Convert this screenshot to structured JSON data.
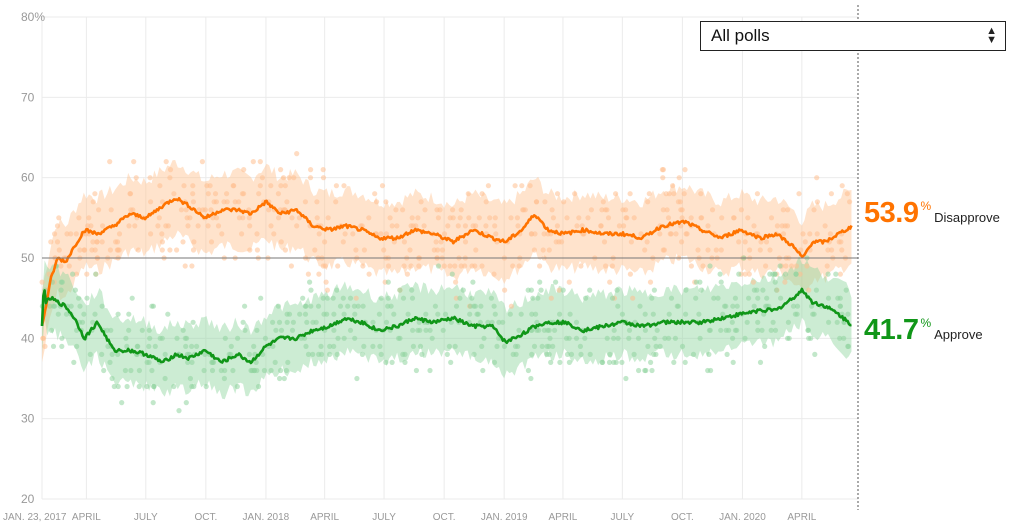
{
  "controls": {
    "poll_filter": {
      "selected": "All polls"
    }
  },
  "colors": {
    "approve": "#109618",
    "approve_light": "#8fd49e",
    "disapprove": "#ff7300",
    "disapprove_light": "#ffc08f"
  },
  "chart_data": {
    "type": "line",
    "y_ticks": [
      "80%",
      "70",
      "60",
      "50",
      "40",
      "30",
      "20"
    ],
    "ylim": [
      20,
      80
    ],
    "reference_line": 50,
    "x_ticks": [
      "JAN. 23, 2017",
      "APRIL",
      "JULY",
      "OCT.",
      "JAN. 2018",
      "APRIL",
      "JULY",
      "OCT.",
      "JAN. 2019",
      "APRIL",
      "JULY",
      "OCT.",
      "JAN. 2020",
      "APRIL"
    ],
    "x_tick_days": [
      0,
      68,
      159,
      251,
      343,
      433,
      524,
      616,
      708,
      798,
      889,
      981,
      1073,
      1164
    ],
    "x_range_days": [
      0,
      1250
    ],
    "grid": true,
    "series": [
      {
        "name": "Disapprove",
        "current": "53.9",
        "label": "Disapprove",
        "band_width": 4.5,
        "points": [
          [
            0,
            41.5
          ],
          [
            6,
            44
          ],
          [
            14,
            47.5
          ],
          [
            24,
            50
          ],
          [
            36,
            49.5
          ],
          [
            50,
            51.5
          ],
          [
            65,
            53.5
          ],
          [
            85,
            53
          ],
          [
            110,
            54
          ],
          [
            135,
            55.5
          ],
          [
            160,
            55
          ],
          [
            185,
            56.5
          ],
          [
            205,
            57.5
          ],
          [
            225,
            56.5
          ],
          [
            250,
            55
          ],
          [
            275,
            56
          ],
          [
            300,
            56
          ],
          [
            320,
            55.5
          ],
          [
            343,
            57
          ],
          [
            365,
            55.5
          ],
          [
            390,
            56
          ],
          [
            415,
            54
          ],
          [
            440,
            53.5
          ],
          [
            465,
            54
          ],
          [
            490,
            53.5
          ],
          [
            515,
            52.5
          ],
          [
            545,
            52.5
          ],
          [
            570,
            53.5
          ],
          [
            600,
            53
          ],
          [
            630,
            52
          ],
          [
            660,
            53.5
          ],
          [
            690,
            52.5
          ],
          [
            710,
            52
          ],
          [
            735,
            53.5
          ],
          [
            755,
            55.5
          ],
          [
            775,
            53.5
          ],
          [
            800,
            53
          ],
          [
            830,
            53.5
          ],
          [
            860,
            53
          ],
          [
            890,
            53
          ],
          [
            920,
            52.5
          ],
          [
            950,
            54
          ],
          [
            985,
            54.5
          ],
          [
            1010,
            53.5
          ],
          [
            1040,
            52.5
          ],
          [
            1070,
            53.5
          ],
          [
            1100,
            52.5
          ],
          [
            1125,
            53
          ],
          [
            1150,
            51.5
          ],
          [
            1165,
            50
          ],
          [
            1180,
            52
          ],
          [
            1200,
            52
          ],
          [
            1220,
            53
          ],
          [
            1240,
            53.9
          ]
        ]
      },
      {
        "name": "Approve",
        "current": "41.7",
        "label": "Approve",
        "band_width": 4.0,
        "points": [
          [
            0,
            41.5
          ],
          [
            3,
            47
          ],
          [
            6,
            44.5
          ],
          [
            14,
            45
          ],
          [
            24,
            44.5
          ],
          [
            36,
            44
          ],
          [
            50,
            42.5
          ],
          [
            65,
            40
          ],
          [
            85,
            42
          ],
          [
            110,
            38.5
          ],
          [
            135,
            38.5
          ],
          [
            160,
            38
          ],
          [
            185,
            37
          ],
          [
            205,
            38
          ],
          [
            225,
            37.5
          ],
          [
            250,
            38.5
          ],
          [
            275,
            37
          ],
          [
            300,
            38
          ],
          [
            320,
            37
          ],
          [
            343,
            39
          ],
          [
            365,
            40
          ],
          [
            390,
            40
          ],
          [
            415,
            41
          ],
          [
            440,
            41.5
          ],
          [
            465,
            42.5
          ],
          [
            490,
            42
          ],
          [
            515,
            41
          ],
          [
            545,
            41.5
          ],
          [
            570,
            42.5
          ],
          [
            600,
            42
          ],
          [
            630,
            42.5
          ],
          [
            660,
            41.5
          ],
          [
            690,
            41.5
          ],
          [
            710,
            39.5
          ],
          [
            735,
            40.5
          ],
          [
            755,
            41.5
          ],
          [
            775,
            42
          ],
          [
            800,
            42
          ],
          [
            830,
            41
          ],
          [
            860,
            41.5
          ],
          [
            890,
            42
          ],
          [
            920,
            41.5
          ],
          [
            950,
            42
          ],
          [
            985,
            42
          ],
          [
            1010,
            42
          ],
          [
            1040,
            42.5
          ],
          [
            1070,
            43
          ],
          [
            1100,
            43.5
          ],
          [
            1125,
            43.5
          ],
          [
            1150,
            45
          ],
          [
            1165,
            46
          ],
          [
            1180,
            44.5
          ],
          [
            1200,
            44
          ],
          [
            1220,
            43
          ],
          [
            1240,
            41.7
          ]
        ]
      }
    ]
  }
}
